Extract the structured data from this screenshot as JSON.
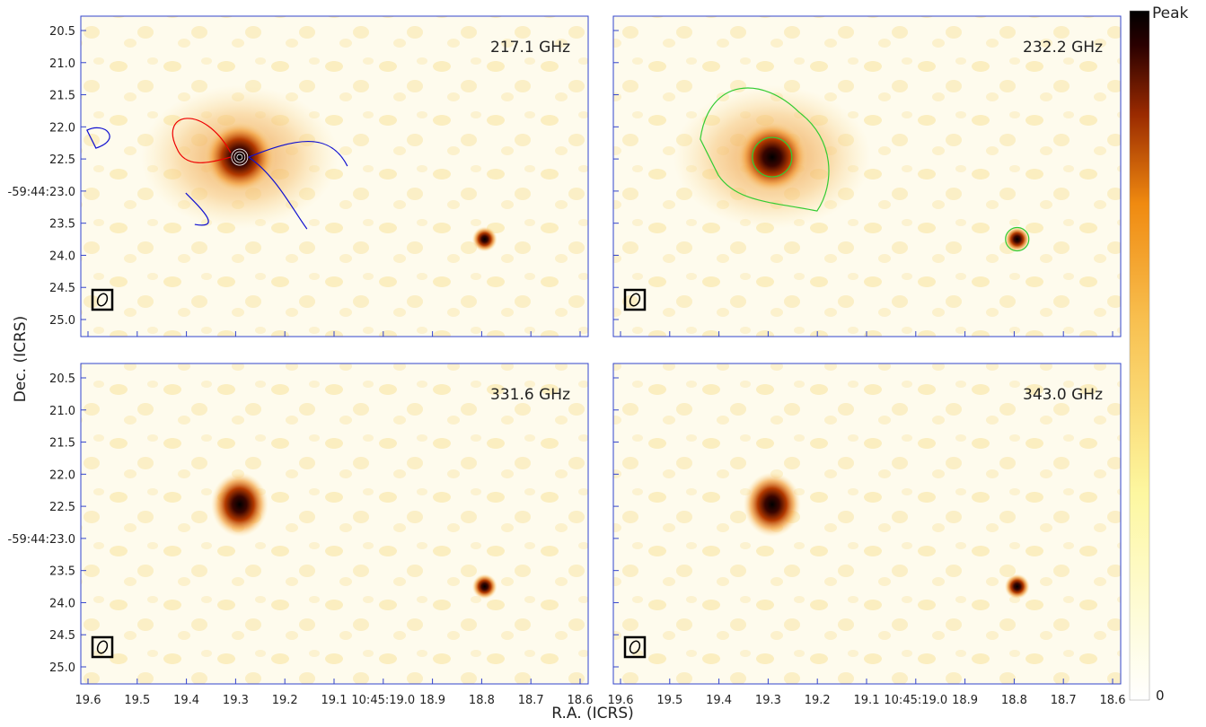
{
  "panels": [
    {
      "label": "217.1 GHz"
    },
    {
      "label": "232.2 GHz"
    },
    {
      "label": "331.6 GHz"
    },
    {
      "label": "343.0 GHz"
    }
  ],
  "x_axis": {
    "label": "R.A. (ICRS)",
    "ticks": [
      "19.6",
      "19.5",
      "19.4",
      "19.3",
      "19.2",
      "19.1",
      "10:45:19.0",
      "18.9",
      "18.8",
      "18.7",
      "18.6"
    ]
  },
  "y_axis": {
    "label": "Dec. (ICRS)",
    "ticks": [
      "20.5",
      "21.0",
      "21.5",
      "22.0",
      "22.5",
      "-59:44:23.0",
      "23.5",
      "24.0",
      "24.5",
      "25.0"
    ]
  },
  "colorbar": {
    "top": "Peak",
    "bottom": "0"
  }
}
